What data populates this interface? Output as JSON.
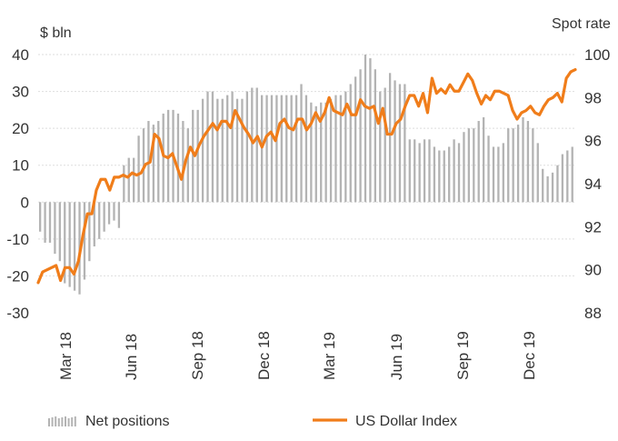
{
  "chart_data": {
    "type": "bar+line",
    "left_axis": {
      "label": "$ bln",
      "ylim": [
        -30,
        40
      ],
      "ticks": [
        40,
        30,
        20,
        10,
        0,
        -10,
        -20,
        -30
      ]
    },
    "right_axis": {
      "label": "Spot rate",
      "ylim": [
        88,
        100
      ],
      "ticks": [
        100,
        98,
        96,
        94,
        92,
        90,
        88
      ]
    },
    "x_labels": [
      "Mar 18",
      "Jun 18",
      "Sep 18",
      "Dec 18",
      "Mar 19",
      "Jun 19",
      "Sep 19",
      "Dec 19"
    ],
    "grid": true,
    "legend_position": "bottom",
    "series": [
      {
        "name": "Net positions",
        "type": "bar",
        "axis": "left",
        "color": "#b3b3b3",
        "values": [
          -8,
          -11,
          -11,
          -14,
          -16,
          -22,
          -23,
          -24,
          -25,
          -21,
          -16,
          -12,
          -10,
          -8,
          -6,
          -5,
          -7,
          10,
          12,
          12,
          18,
          20,
          22,
          21,
          22,
          24,
          25,
          25,
          24,
          22,
          20,
          25,
          25,
          28,
          30,
          30,
          28,
          28,
          29,
          30,
          28,
          28,
          30,
          31,
          31,
          29,
          29,
          29,
          29,
          29,
          29,
          29,
          29,
          32,
          29,
          27,
          26,
          27,
          27,
          28,
          29,
          29,
          30,
          32,
          34,
          36,
          40,
          39,
          36,
          30,
          31,
          35,
          33,
          32,
          32,
          17,
          17,
          16,
          17,
          17,
          15,
          14,
          14,
          15,
          17,
          16,
          19,
          20,
          20,
          22,
          23,
          18,
          15,
          15,
          16,
          20,
          20,
          21,
          23,
          22,
          20,
          16,
          9,
          7,
          8,
          10,
          13,
          14,
          15
        ]
      },
      {
        "name": "US Dollar Index",
        "type": "line",
        "axis": "right",
        "color": "#f07d1a",
        "values": [
          89.4,
          89.9,
          90.0,
          90.1,
          90.2,
          89.5,
          90.1,
          90.1,
          89.8,
          90.4,
          91.6,
          92.6,
          92.6,
          93.7,
          94.2,
          94.2,
          93.7,
          94.3,
          94.3,
          94.4,
          94.3,
          94.5,
          94.4,
          94.5,
          94.9,
          95.0,
          96.3,
          96.1,
          95.3,
          95.2,
          95.4,
          94.8,
          94.2,
          95.1,
          95.7,
          95.3,
          95.8,
          96.2,
          96.5,
          96.8,
          96.5,
          96.9,
          96.9,
          96.6,
          97.4,
          97.0,
          96.6,
          96.3,
          95.9,
          96.2,
          95.7,
          96.2,
          96.4,
          96.0,
          96.8,
          97.0,
          96.6,
          96.5,
          97.0,
          97.0,
          96.5,
          96.8,
          97.3,
          96.9,
          97.3,
          98.0,
          97.4,
          97.3,
          97.2,
          97.7,
          97.2,
          97.2,
          97.9,
          97.6,
          97.5,
          97.6,
          96.8,
          97.5,
          96.3,
          96.3,
          96.8,
          97.0,
          97.6,
          98.1,
          98.1,
          97.6,
          98.2,
          97.3,
          98.9,
          98.2,
          98.4,
          98.2,
          98.6,
          98.3,
          98.3,
          98.7,
          99.1,
          98.8,
          98.2,
          97.7,
          98.1,
          97.9,
          98.3,
          98.3,
          98.2,
          98.1,
          97.4,
          97.0,
          97.3,
          97.4,
          97.6,
          97.3,
          97.2,
          97.6,
          97.9,
          98.0,
          98.2,
          97.8,
          98.9,
          99.2,
          99.3
        ]
      }
    ]
  }
}
